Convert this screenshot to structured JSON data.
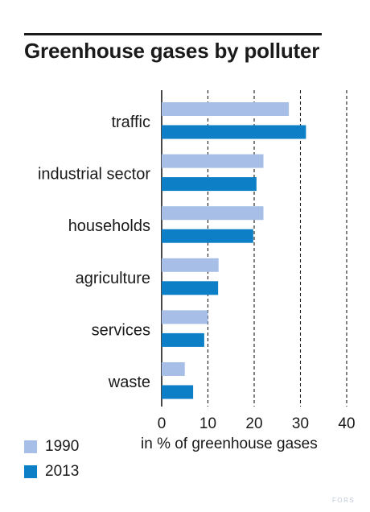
{
  "title": "Greenhouse gases by polluter",
  "chart_data": {
    "type": "bar",
    "orientation": "horizontal",
    "title": "Greenhouse gases by polluter",
    "xlabel": "in % of greenhouse gases",
    "ylabel": "",
    "xlim": [
      0,
      40
    ],
    "xticks": [
      "0",
      "10",
      "20",
      "30",
      "40"
    ],
    "grid": "vertical dashed",
    "legend_position": "bottom-left",
    "categories": [
      "traffic",
      "industrial sector",
      "households",
      "agriculture",
      "services",
      "waste"
    ],
    "series": [
      {
        "name": "1990",
        "color": "#a7bfe6",
        "values": [
          27.5,
          22,
          22,
          12.3,
          10,
          5
        ]
      },
      {
        "name": "2013",
        "color": "#0d7fc6",
        "values": [
          31.2,
          20.5,
          19.8,
          12.2,
          9.2,
          6.8
        ]
      }
    ]
  },
  "logo_text": "FORS"
}
